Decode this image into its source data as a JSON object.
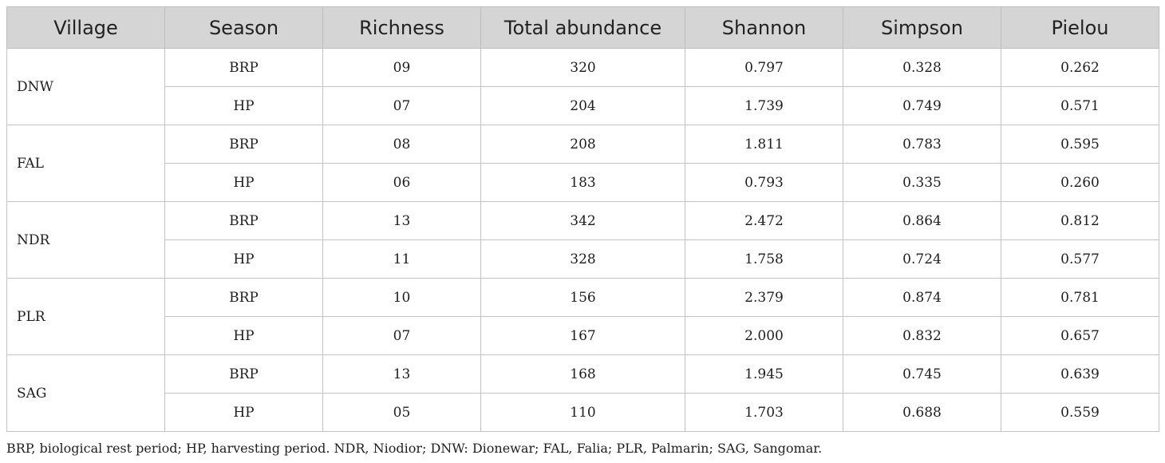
{
  "table": {
    "headers": [
      "Village",
      "Season",
      "Richness",
      "Total abundance",
      "Shannon",
      "Simpson",
      "Pielou"
    ],
    "groups": [
      {
        "village": "DNW",
        "rows": [
          {
            "season": "BRP",
            "richness": "09",
            "total_abundance": "320",
            "shannon": "0.797",
            "simpson": "0.328",
            "pielou": "0.262"
          },
          {
            "season": "HP",
            "richness": "07",
            "total_abundance": "204",
            "shannon": "1.739",
            "simpson": "0.749",
            "pielou": "0.571"
          }
        ]
      },
      {
        "village": "FAL",
        "rows": [
          {
            "season": "BRP",
            "richness": "08",
            "total_abundance": "208",
            "shannon": "1.811",
            "simpson": "0.783",
            "pielou": "0.595"
          },
          {
            "season": "HP",
            "richness": "06",
            "total_abundance": "183",
            "shannon": "0.793",
            "simpson": "0.335",
            "pielou": "0.260"
          }
        ]
      },
      {
        "village": "NDR",
        "rows": [
          {
            "season": "BRP",
            "richness": "13",
            "total_abundance": "342",
            "shannon": "2.472",
            "simpson": "0.864",
            "pielou": "0.812"
          },
          {
            "season": "HP",
            "richness": "11",
            "total_abundance": "328",
            "shannon": "1.758",
            "simpson": "0.724",
            "pielou": "0.577"
          }
        ]
      },
      {
        "village": "PLR",
        "rows": [
          {
            "season": "BRP",
            "richness": "10",
            "total_abundance": "156",
            "shannon": "2.379",
            "simpson": "0.874",
            "pielou": "0.781"
          },
          {
            "season": "HP",
            "richness": "07",
            "total_abundance": "167",
            "shannon": "2.000",
            "simpson": "0.832",
            "pielou": "0.657"
          }
        ]
      },
      {
        "village": "SAG",
        "rows": [
          {
            "season": "BRP",
            "richness": "13",
            "total_abundance": "168",
            "shannon": "1.945",
            "simpson": "0.745",
            "pielou": "0.639"
          },
          {
            "season": "HP",
            "richness": "05",
            "total_abundance": "110",
            "shannon": "1.703",
            "simpson": "0.688",
            "pielou": "0.559"
          }
        ]
      }
    ]
  },
  "footnote": "BRP, biological rest period; HP, harvesting period. NDR, Niodior; DNW: Dionewar; FAL, Falia; PLR, Palmarin; SAG, Sangomar.",
  "colors": {
    "header_background": "#d5d5d5",
    "border": "#c4c4c4",
    "text": "#1e1e1e"
  }
}
